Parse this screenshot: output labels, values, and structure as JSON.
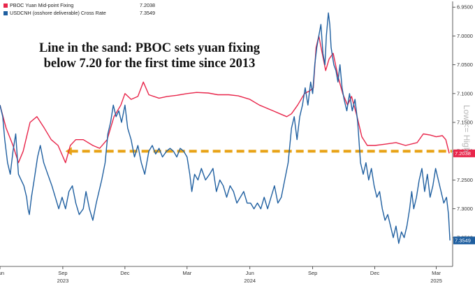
{
  "headline": {
    "line1": "Line in the sand: PBOC sets yuan fixing",
    "line2": "below 7.20 for the first time since 2013"
  },
  "right_label": "Low <= High",
  "source_text": "",
  "chart_data": {
    "type": "line",
    "title": "",
    "xlabel": "",
    "ylabel": "",
    "y_inverted": true,
    "ylim": [
      7.4,
      6.94
    ],
    "y_ticks": [
      6.95,
      7.0,
      7.05,
      7.1,
      7.15,
      7.2,
      7.25,
      7.3,
      7.35
    ],
    "y_tick_labels": [
      "6.9500",
      "7.0000",
      "7.0500",
      "7.1000",
      "7.1500",
      "7.2000",
      "7.2500",
      "7.3000",
      "7.3500"
    ],
    "x_range": [
      "2023-06-01",
      "2025-03-25"
    ],
    "x_ticks": [
      {
        "date": "2023-06-01",
        "label": "Jun"
      },
      {
        "date": "2023-09-01",
        "label": "Sep"
      },
      {
        "date": "2023-12-01",
        "label": "Dec"
      },
      {
        "date": "2024-03-01",
        "label": "Mar"
      },
      {
        "date": "2024-06-01",
        "label": "Jun"
      },
      {
        "date": "2024-09-01",
        "label": "Sep"
      },
      {
        "date": "2024-12-01",
        "label": "Dec"
      },
      {
        "date": "2025-03-01",
        "label": "Mar"
      }
    ],
    "year_labels": [
      {
        "date": "2023-09-01",
        "label": "2023"
      },
      {
        "date": "2024-06-01",
        "label": "2024"
      },
      {
        "date": "2025-03-01",
        "label": "2025"
      }
    ],
    "grid": false,
    "legend_position": "top-left",
    "threshold": {
      "y": 7.2,
      "color": "#e8a317",
      "style": "dashed-arrow"
    },
    "series": [
      {
        "name": "PBOC Yuan Mid-point Fixing",
        "last_value": "7.2038",
        "color": "#e8254a",
        "points": [
          [
            "2023-06-01",
            7.12
          ],
          [
            "2023-06-10",
            7.16
          ],
          [
            "2023-06-20",
            7.19
          ],
          [
            "2023-06-28",
            7.22
          ],
          [
            "2023-07-05",
            7.2
          ],
          [
            "2023-07-15",
            7.15
          ],
          [
            "2023-07-25",
            7.14
          ],
          [
            "2023-08-05",
            7.16
          ],
          [
            "2023-08-15",
            7.18
          ],
          [
            "2023-08-25",
            7.19
          ],
          [
            "2023-09-05",
            7.22
          ],
          [
            "2023-09-12",
            7.19
          ],
          [
            "2023-09-20",
            7.18
          ],
          [
            "2023-10-01",
            7.18
          ],
          [
            "2023-10-15",
            7.19
          ],
          [
            "2023-10-25",
            7.195
          ],
          [
            "2023-11-05",
            7.18
          ],
          [
            "2023-11-15",
            7.14
          ],
          [
            "2023-11-25",
            7.12
          ],
          [
            "2023-12-01",
            7.1
          ],
          [
            "2023-12-10",
            7.11
          ],
          [
            "2023-12-20",
            7.105
          ],
          [
            "2023-12-28",
            7.08
          ],
          [
            "2024-01-05",
            7.102
          ],
          [
            "2024-01-20",
            7.108
          ],
          [
            "2024-02-01",
            7.105
          ],
          [
            "2024-02-15",
            7.103
          ],
          [
            "2024-03-01",
            7.1
          ],
          [
            "2024-03-15",
            7.098
          ],
          [
            "2024-04-01",
            7.099
          ],
          [
            "2024-04-15",
            7.102
          ],
          [
            "2024-05-01",
            7.102
          ],
          [
            "2024-05-15",
            7.104
          ],
          [
            "2024-06-01",
            7.11
          ],
          [
            "2024-06-15",
            7.12
          ],
          [
            "2024-06-25",
            7.125
          ],
          [
            "2024-07-05",
            7.13
          ],
          [
            "2024-07-15",
            7.135
          ],
          [
            "2024-07-25",
            7.14
          ],
          [
            "2024-08-01",
            7.135
          ],
          [
            "2024-08-10",
            7.12
          ],
          [
            "2024-08-20",
            7.1
          ],
          [
            "2024-08-28",
            7.095
          ],
          [
            "2024-09-02",
            7.09
          ],
          [
            "2024-09-06",
            7.02
          ],
          [
            "2024-09-10",
            7.0
          ],
          [
            "2024-09-15",
            7.03
          ],
          [
            "2024-09-20",
            7.06
          ],
          [
            "2024-09-25",
            7.04
          ],
          [
            "2024-10-01",
            7.03
          ],
          [
            "2024-10-08",
            7.07
          ],
          [
            "2024-10-15",
            7.1
          ],
          [
            "2024-10-22",
            7.12
          ],
          [
            "2024-10-28",
            7.105
          ],
          [
            "2024-11-05",
            7.14
          ],
          [
            "2024-11-12",
            7.175
          ],
          [
            "2024-11-20",
            7.19
          ],
          [
            "2024-12-01",
            7.19
          ],
          [
            "2024-12-15",
            7.188
          ],
          [
            "2025-01-01",
            7.185
          ],
          [
            "2025-01-15",
            7.19
          ],
          [
            "2025-02-01",
            7.185
          ],
          [
            "2025-02-10",
            7.17
          ],
          [
            "2025-02-20",
            7.172
          ],
          [
            "2025-03-01",
            7.175
          ],
          [
            "2025-03-10",
            7.173
          ],
          [
            "2025-03-15",
            7.18
          ],
          [
            "2025-03-20",
            7.2038
          ]
        ]
      },
      {
        "name": "USDCNH (osshore deliverable) Cross Rate",
        "last_value": "7.3549",
        "color": "#1f5fa0",
        "points": [
          [
            "2023-06-01",
            7.12
          ],
          [
            "2023-06-05",
            7.14
          ],
          [
            "2023-06-08",
            7.18
          ],
          [
            "2023-06-12",
            7.22
          ],
          [
            "2023-06-16",
            7.24
          ],
          [
            "2023-06-20",
            7.2
          ],
          [
            "2023-06-24",
            7.17
          ],
          [
            "2023-06-28",
            7.24
          ],
          [
            "2023-07-02",
            7.25
          ],
          [
            "2023-07-06",
            7.26
          ],
          [
            "2023-07-10",
            7.28
          ],
          [
            "2023-07-12",
            7.3
          ],
          [
            "2023-07-14",
            7.31
          ],
          [
            "2023-07-17",
            7.28
          ],
          [
            "2023-07-21",
            7.25
          ],
          [
            "2023-07-26",
            7.21
          ],
          [
            "2023-07-30",
            7.19
          ],
          [
            "2023-08-04",
            7.22
          ],
          [
            "2023-08-10",
            7.24
          ],
          [
            "2023-08-16",
            7.26
          ],
          [
            "2023-08-21",
            7.28
          ],
          [
            "2023-08-26",
            7.3
          ],
          [
            "2023-08-31",
            7.28
          ],
          [
            "2023-09-05",
            7.3
          ],
          [
            "2023-09-10",
            7.27
          ],
          [
            "2023-09-15",
            7.26
          ],
          [
            "2023-09-20",
            7.29
          ],
          [
            "2023-09-25",
            7.31
          ],
          [
            "2023-10-01",
            7.3
          ],
          [
            "2023-10-05",
            7.27
          ],
          [
            "2023-10-10",
            7.3
          ],
          [
            "2023-10-15",
            7.32
          ],
          [
            "2023-10-20",
            7.29
          ],
          [
            "2023-10-24",
            7.27
          ],
          [
            "2023-10-28",
            7.25
          ],
          [
            "2023-11-02",
            7.22
          ],
          [
            "2023-11-06",
            7.17
          ],
          [
            "2023-11-10",
            7.15
          ],
          [
            "2023-11-14",
            7.12
          ],
          [
            "2023-11-18",
            7.14
          ],
          [
            "2023-11-22",
            7.13
          ],
          [
            "2023-11-26",
            7.15
          ],
          [
            "2023-12-01",
            7.12
          ],
          [
            "2023-12-05",
            7.16
          ],
          [
            "2023-12-10",
            7.18
          ],
          [
            "2023-12-15",
            7.21
          ],
          [
            "2023-12-20",
            7.19
          ],
          [
            "2023-12-25",
            7.22
          ],
          [
            "2023-12-30",
            7.24
          ],
          [
            "2024-01-05",
            7.2
          ],
          [
            "2024-01-10",
            7.19
          ],
          [
            "2024-01-15",
            7.205
          ],
          [
            "2024-01-20",
            7.195
          ],
          [
            "2024-01-25",
            7.21
          ],
          [
            "2024-01-31",
            7.2
          ],
          [
            "2024-02-05",
            7.195
          ],
          [
            "2024-02-10",
            7.2
          ],
          [
            "2024-02-15",
            7.21
          ],
          [
            "2024-02-20",
            7.195
          ],
          [
            "2024-02-25",
            7.2
          ],
          [
            "2024-03-01",
            7.21
          ],
          [
            "2024-03-05",
            7.24
          ],
          [
            "2024-03-08",
            7.27
          ],
          [
            "2024-03-12",
            7.24
          ],
          [
            "2024-03-17",
            7.25
          ],
          [
            "2024-03-22",
            7.23
          ],
          [
            "2024-03-28",
            7.25
          ],
          [
            "2024-04-03",
            7.24
          ],
          [
            "2024-04-08",
            7.23
          ],
          [
            "2024-04-13",
            7.27
          ],
          [
            "2024-04-18",
            7.25
          ],
          [
            "2024-04-23",
            7.26
          ],
          [
            "2024-04-28",
            7.28
          ],
          [
            "2024-05-03",
            7.26
          ],
          [
            "2024-05-08",
            7.27
          ],
          [
            "2024-05-13",
            7.29
          ],
          [
            "2024-05-18",
            7.28
          ],
          [
            "2024-05-23",
            7.27
          ],
          [
            "2024-05-28",
            7.29
          ],
          [
            "2024-06-02",
            7.29
          ],
          [
            "2024-06-07",
            7.3
          ],
          [
            "2024-06-12",
            7.29
          ],
          [
            "2024-06-17",
            7.3
          ],
          [
            "2024-06-22",
            7.28
          ],
          [
            "2024-06-27",
            7.3
          ],
          [
            "2024-07-02",
            7.28
          ],
          [
            "2024-07-07",
            7.26
          ],
          [
            "2024-07-12",
            7.29
          ],
          [
            "2024-07-17",
            7.28
          ],
          [
            "2024-07-22",
            7.25
          ],
          [
            "2024-07-27",
            7.22
          ],
          [
            "2024-08-01",
            7.16
          ],
          [
            "2024-08-05",
            7.14
          ],
          [
            "2024-08-09",
            7.18
          ],
          [
            "2024-08-13",
            7.14
          ],
          [
            "2024-08-17",
            7.12
          ],
          [
            "2024-08-21",
            7.09
          ],
          [
            "2024-08-25",
            7.12
          ],
          [
            "2024-08-29",
            7.08
          ],
          [
            "2024-09-01",
            7.1
          ],
          [
            "2024-09-04",
            7.05
          ],
          [
            "2024-09-07",
            7.02
          ],
          [
            "2024-09-10",
            7.0
          ],
          [
            "2024-09-13",
            6.98
          ],
          [
            "2024-09-16",
            7.03
          ],
          [
            "2024-09-19",
            7.05
          ],
          [
            "2024-09-21",
            7.0
          ],
          [
            "2024-09-24",
            6.96
          ],
          [
            "2024-09-26",
            6.98
          ],
          [
            "2024-09-28",
            7.02
          ],
          [
            "2024-10-02",
            7.05
          ],
          [
            "2024-10-05",
            7.06
          ],
          [
            "2024-10-08",
            7.08
          ],
          [
            "2024-10-11",
            7.05
          ],
          [
            "2024-10-14",
            7.09
          ],
          [
            "2024-10-17",
            7.11
          ],
          [
            "2024-10-21",
            7.13
          ],
          [
            "2024-10-25",
            7.1
          ],
          [
            "2024-10-29",
            7.13
          ],
          [
            "2024-11-02",
            7.11
          ],
          [
            "2024-11-06",
            7.15
          ],
          [
            "2024-11-10",
            7.22
          ],
          [
            "2024-11-14",
            7.24
          ],
          [
            "2024-11-18",
            7.22
          ],
          [
            "2024-11-22",
            7.25
          ],
          [
            "2024-11-26",
            7.23
          ],
          [
            "2024-11-30",
            7.26
          ],
          [
            "2024-12-04",
            7.28
          ],
          [
            "2024-12-08",
            7.27
          ],
          [
            "2024-12-12",
            7.3
          ],
          [
            "2024-12-16",
            7.32
          ],
          [
            "2024-12-20",
            7.31
          ],
          [
            "2024-12-24",
            7.33
          ],
          [
            "2024-12-28",
            7.35
          ],
          [
            "2025-01-01",
            7.33
          ],
          [
            "2025-01-05",
            7.36
          ],
          [
            "2025-01-09",
            7.34
          ],
          [
            "2025-01-13",
            7.35
          ],
          [
            "2025-01-17",
            7.33
          ],
          [
            "2025-01-21",
            7.3
          ],
          [
            "2025-01-24",
            7.27
          ],
          [
            "2025-01-27",
            7.3
          ],
          [
            "2025-01-31",
            7.28
          ],
          [
            "2025-02-04",
            7.25
          ],
          [
            "2025-02-08",
            7.23
          ],
          [
            "2025-02-12",
            7.27
          ],
          [
            "2025-02-16",
            7.24
          ],
          [
            "2025-02-20",
            7.28
          ],
          [
            "2025-02-24",
            7.26
          ],
          [
            "2025-02-28",
            7.23
          ],
          [
            "2025-03-04",
            7.25
          ],
          [
            "2025-03-08",
            7.27
          ],
          [
            "2025-03-12",
            7.29
          ],
          [
            "2025-03-16",
            7.28
          ],
          [
            "2025-03-19",
            7.31
          ],
          [
            "2025-03-21",
            7.3549
          ]
        ]
      }
    ]
  }
}
